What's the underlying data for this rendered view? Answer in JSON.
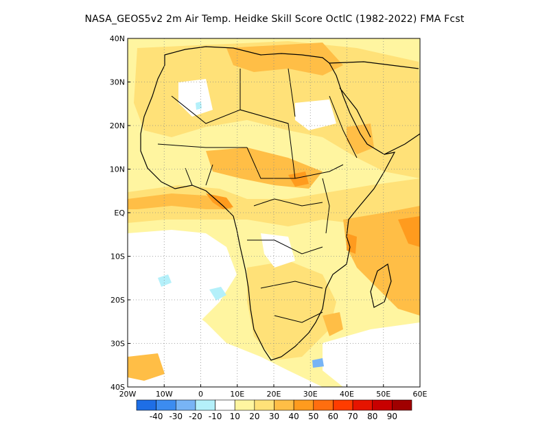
{
  "title": "NASA_GEOS5v2  2m Air Temp. Heidke Skill Score OctlC (1982-2022) FMA Fcst",
  "map": {
    "lon_range": [
      -20,
      60
    ],
    "lat_range": [
      -40,
      40
    ],
    "lon_ticks": [
      {
        "value": -20,
        "label": "20W"
      },
      {
        "value": -10,
        "label": "10W"
      },
      {
        "value": 0,
        "label": "0"
      },
      {
        "value": 10,
        "label": "10E"
      },
      {
        "value": 20,
        "label": "20E"
      },
      {
        "value": 30,
        "label": "30E"
      },
      {
        "value": 40,
        "label": "40E"
      },
      {
        "value": 50,
        "label": "50E"
      },
      {
        "value": 60,
        "label": "60E"
      }
    ],
    "lat_ticks": [
      {
        "value": 40,
        "label": "40N"
      },
      {
        "value": 30,
        "label": "30N"
      },
      {
        "value": 20,
        "label": "20N"
      },
      {
        "value": 10,
        "label": "10N"
      },
      {
        "value": 0,
        "label": "EQ"
      },
      {
        "value": -10,
        "label": "10S"
      },
      {
        "value": -20,
        "label": "20S"
      },
      {
        "value": -30,
        "label": "30S"
      },
      {
        "value": -40,
        "label": "40S"
      }
    ],
    "gridlines": "dotted"
  },
  "colorbar": {
    "labels": [
      "-40",
      "-30",
      "-20",
      "-10",
      "10",
      "20",
      "30",
      "40",
      "50",
      "60",
      "70",
      "80",
      "90"
    ],
    "colors": [
      "#1e6ee6",
      "#3c8cf0",
      "#78b4f5",
      "#b4f0fa",
      "#ffffff",
      "#fff5a0",
      "#ffe178",
      "#ffbe46",
      "#ff9b1e",
      "#ff6e0f",
      "#ff3c00",
      "#e61400",
      "#c80000",
      "#a00000"
    ]
  },
  "chart_data": {
    "type": "heatmap",
    "title": "NASA_GEOS5v2  2m Air Temp. Heidke Skill Score OctlC (1982-2022) FMA Fcst",
    "xlim": [
      -20,
      60
    ],
    "ylim": [
      -40,
      40
    ],
    "x_unit": "degrees longitude",
    "y_unit": "degrees latitude",
    "color_scale": [
      -40,
      -30,
      -20,
      -10,
      10,
      20,
      30,
      40,
      50,
      60,
      70,
      80,
      90
    ],
    "regions": [
      {
        "lon": [
          -18,
          35
        ],
        "lat": [
          15,
          35
        ],
        "value": 20
      },
      {
        "lon": [
          -20,
          60
        ],
        "lat": [
          -5,
          10
        ],
        "value": 20
      },
      {
        "lon": [
          -20,
          -8
        ],
        "lat": [
          -40,
          -5
        ],
        "value": 10
      },
      {
        "lon": [
          -8,
          5
        ],
        "lat": [
          -20,
          -10
        ],
        "value": -10
      },
      {
        "lon": [
          0,
          5
        ],
        "lat": [
          -22,
          -20
        ],
        "value": -20
      },
      {
        "lon": [
          3,
          7
        ],
        "lat": [
          0,
          8
        ],
        "value": 30
      },
      {
        "lon": [
          10,
          30
        ],
        "lat": [
          5,
          12
        ],
        "value": 30
      },
      {
        "lon": [
          5,
          10
        ],
        "lat": [
          32,
          38
        ],
        "value": 30
      },
      {
        "lon": [
          38,
          48
        ],
        "lat": [
          -15,
          -5
        ],
        "value": 40
      },
      {
        "lon": [
          50,
          60
        ],
        "lat": [
          -10,
          0
        ],
        "value": 40
      },
      {
        "lon": [
          40,
          60
        ],
        "lat": [
          -25,
          -15
        ],
        "value": 30
      },
      {
        "lon": [
          28,
          34
        ],
        "lat": [
          -30,
          -24
        ],
        "value": 30
      },
      {
        "lon": [
          29,
          33
        ],
        "lat": [
          -36,
          -34
        ],
        "value": -10
      },
      {
        "lon": [
          -12,
          -5
        ],
        "lat": [
          -38,
          -33
        ],
        "value": 30
      }
    ]
  }
}
